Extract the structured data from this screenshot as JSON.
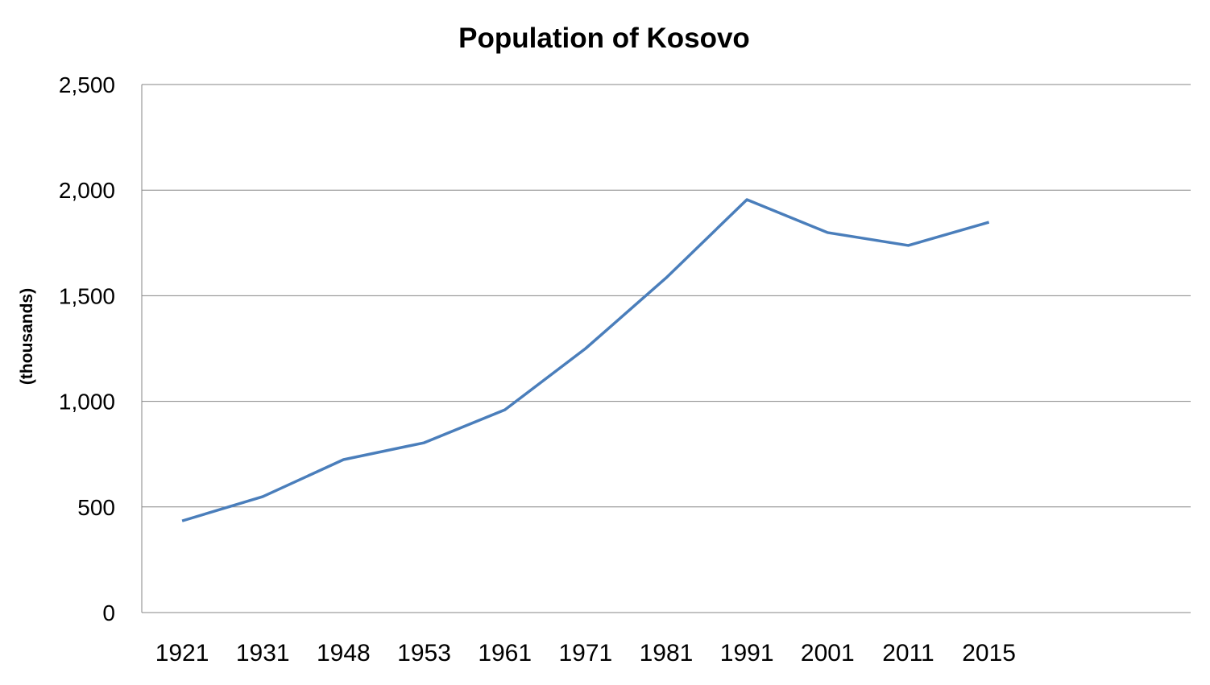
{
  "chart_data": {
    "type": "line",
    "title": "Population of Kosovo",
    "xlabel": "",
    "ylabel": "(thousands)",
    "categories": [
      "1921",
      "1931",
      "1948",
      "1953",
      "1961",
      "1971",
      "1981",
      "1991",
      "2001",
      "2011",
      "2015"
    ],
    "series": [
      {
        "values": [
          434,
          549,
          724,
          804,
          960,
          1250,
          1585,
          1955,
          1799,
          1738,
          1848
        ],
        "color": "#4A7EBB"
      }
    ],
    "ylim": [
      0,
      2500
    ],
    "yticks": [
      0,
      500,
      1000,
      1500,
      2000,
      2500
    ],
    "ytick_labels": [
      "0",
      "500",
      "1,000",
      "1,500",
      "2,000",
      "2,500"
    ],
    "grid": "horizontal",
    "legend": "none"
  }
}
